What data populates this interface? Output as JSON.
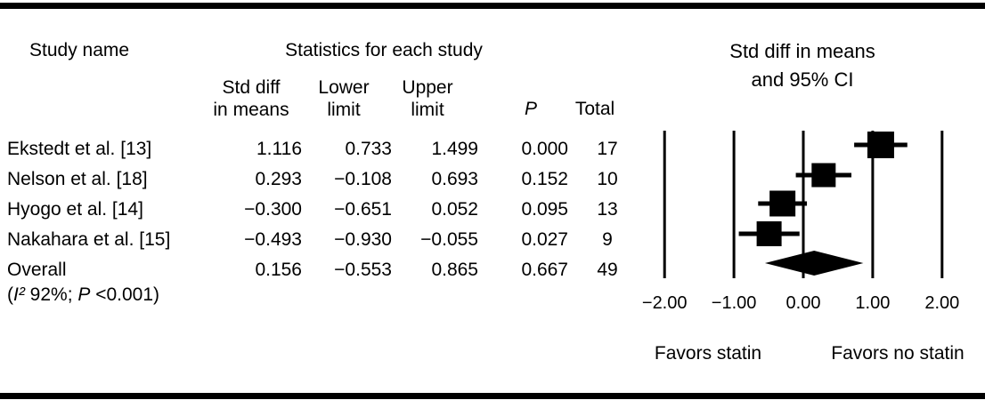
{
  "colors": {
    "ink": "#000000",
    "background": "#ffffff"
  },
  "table": {
    "study_col_header": "Study name",
    "title": "Statistics for each study",
    "col_headers": {
      "std_diff_line1": "Std diff",
      "std_diff_line2": "in means",
      "lower_line1": "Lower",
      "lower_line2": "limit",
      "upper_line1": "Upper",
      "upper_line2": "limit",
      "p": "P",
      "total": "Total"
    },
    "rows": [
      {
        "study": "Ekstedt et al. [13]",
        "std_diff": "1.116",
        "lower": "0.733",
        "upper": "1.499",
        "p": "0.000",
        "total": "17"
      },
      {
        "study": "Nelson et al. [18]",
        "std_diff": "0.293",
        "lower": "−0.108",
        "upper": "0.693",
        "p": "0.152",
        "total": "10"
      },
      {
        "study": "Hyogo et al. [14]",
        "std_diff": "−0.300",
        "lower": "−0.651",
        "upper": "0.052",
        "p": "0.095",
        "total": "13"
      },
      {
        "study": "Nakahara et al. [15]",
        "std_diff": "−0.493",
        "lower": "−0.930",
        "upper": "−0.055",
        "p": "0.027",
        "total": "9"
      },
      {
        "study": "Overall",
        "std_diff": "0.156",
        "lower": "−0.553",
        "upper": "0.865",
        "p": "0.667",
        "total": "49"
      }
    ],
    "overall_note": {
      "open": "(",
      "i2": "I²",
      "mid": " 92%; ",
      "p": "P",
      "close": " <0.001)"
    }
  },
  "chart_data": {
    "type": "forest",
    "title_line1": "Std diff in means",
    "title_line2": "and 95% CI",
    "x_axis": {
      "range": [
        -2.0,
        2.0
      ],
      "ticks": [
        -2.0,
        -1.0,
        0.0,
        1.0,
        2.0
      ],
      "tick_labels": [
        "−2.00",
        "−1.00",
        "0.00",
        "1.00",
        "2.00"
      ]
    },
    "studies": [
      {
        "name": "Ekstedt et al. [13]",
        "mean": 1.116,
        "lower": 0.733,
        "upper": 1.499,
        "marker_size": 30
      },
      {
        "name": "Nelson et al. [18]",
        "mean": 0.293,
        "lower": -0.108,
        "upper": 0.693,
        "marker_size": 27
      },
      {
        "name": "Hyogo et al. [14]",
        "mean": -0.3,
        "lower": -0.651,
        "upper": 0.052,
        "marker_size": 29
      },
      {
        "name": "Nakahara et al. [15]",
        "mean": -0.493,
        "lower": -0.93,
        "upper": -0.055,
        "marker_size": 28
      }
    ],
    "overall": {
      "name": "Overall",
      "mean": 0.156,
      "lower": -0.553,
      "upper": 0.865
    },
    "footer_left": "Favors statin",
    "footer_right": "Favors no statin",
    "legend_position": "none",
    "grid": "vertical-reference-lines"
  }
}
